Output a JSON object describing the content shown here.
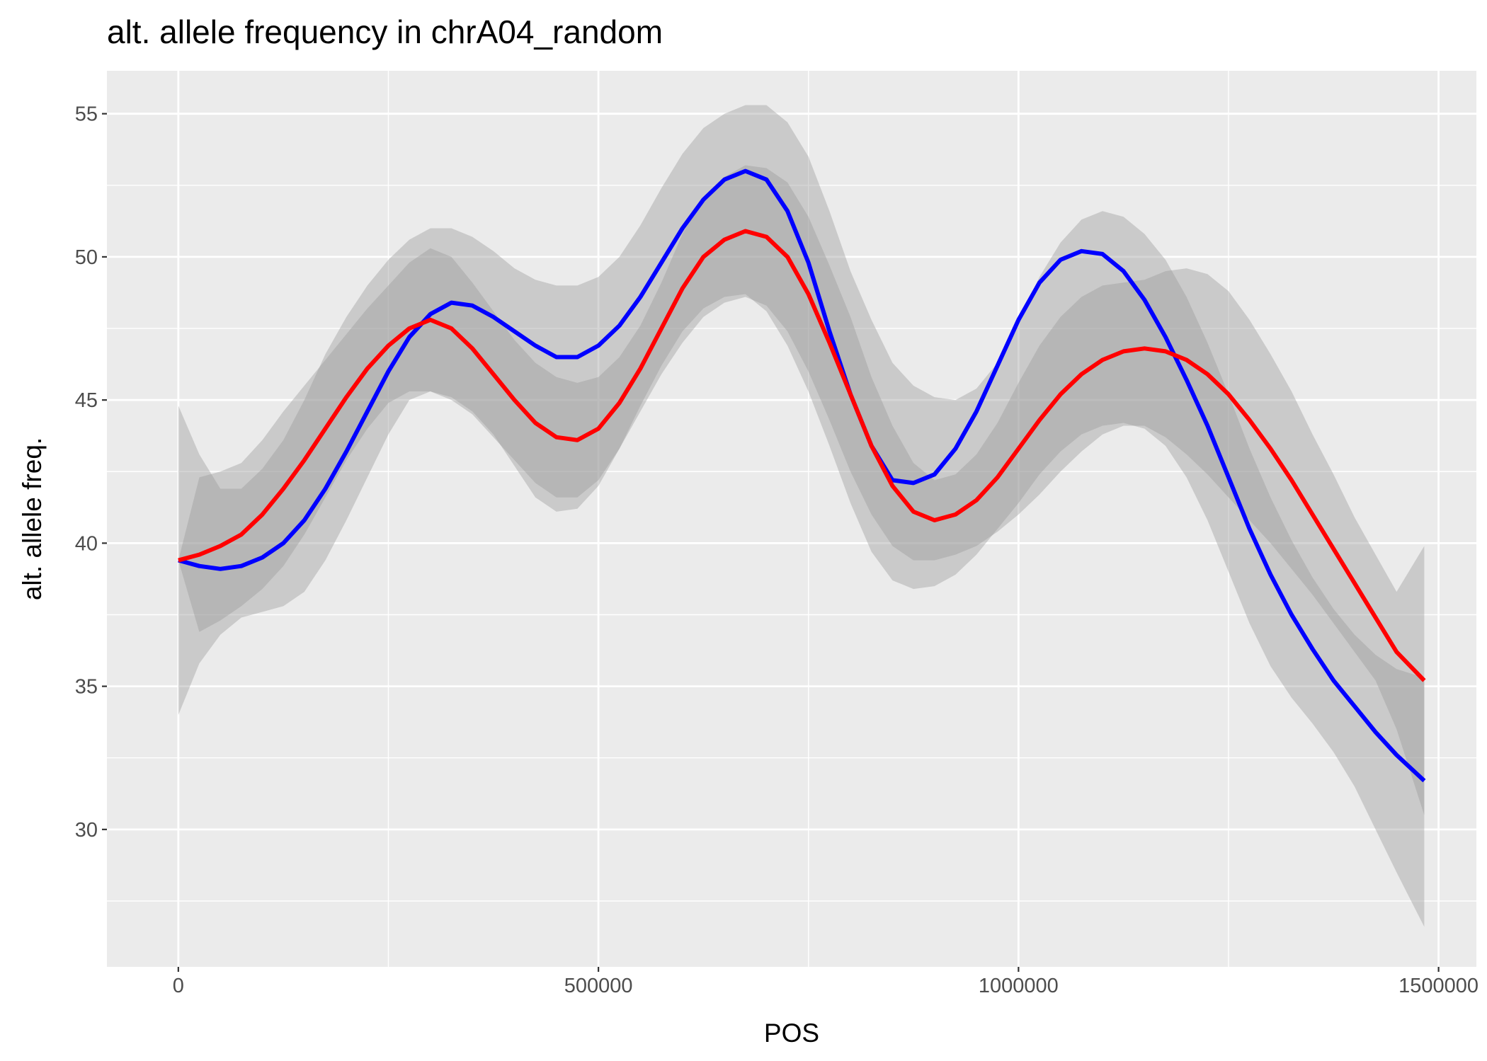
{
  "chart_data": {
    "type": "line",
    "title": "alt. allele frequency in chrA04_random",
    "xlabel": "POS",
    "ylabel": "alt. allele freq.",
    "xlim": [
      -85000,
      1545000
    ],
    "ylim": [
      25.2,
      56.5
    ],
    "x_ticks": [
      0,
      500000,
      1000000,
      1500000
    ],
    "x_tick_labels": [
      "0",
      "500000",
      "1000000",
      "1500000"
    ],
    "y_ticks": [
      30,
      35,
      40,
      45,
      50,
      55
    ],
    "y_tick_labels": [
      "30",
      "35",
      "40",
      "45",
      "50",
      "55"
    ],
    "grid": true,
    "legend": "none",
    "series": [
      {
        "color": "#0000ff",
        "x": [
          0,
          25000,
          50000,
          75000,
          100000,
          125000,
          150000,
          175000,
          200000,
          225000,
          250000,
          275000,
          300000,
          325000,
          350000,
          375000,
          400000,
          425000,
          450000,
          475000,
          500000,
          525000,
          550000,
          575000,
          600000,
          625000,
          650000,
          675000,
          700000,
          725000,
          750000,
          775000,
          800000,
          825000,
          850000,
          875000,
          900000,
          925000,
          950000,
          975000,
          1000000,
          1025000,
          1050000,
          1075000,
          1100000,
          1125000,
          1150000,
          1175000,
          1200000,
          1225000,
          1250000,
          1275000,
          1300000,
          1325000,
          1350000,
          1375000,
          1400000,
          1425000,
          1450000,
          1483000
        ],
        "y": [
          39.4,
          39.2,
          39.1,
          39.2,
          39.5,
          40.0,
          40.8,
          41.9,
          43.2,
          44.6,
          46.0,
          47.2,
          48.0,
          48.4,
          48.3,
          47.9,
          47.4,
          46.9,
          46.5,
          46.5,
          46.9,
          47.6,
          48.6,
          49.8,
          51.0,
          52.0,
          52.7,
          53.0,
          52.7,
          51.6,
          49.8,
          47.4,
          45.2,
          43.4,
          42.2,
          42.1,
          42.4,
          43.3,
          44.6,
          46.2,
          47.8,
          49.1,
          49.9,
          50.2,
          50.1,
          49.5,
          48.5,
          47.2,
          45.7,
          44.1,
          42.3,
          40.5,
          38.9,
          37.5,
          36.3,
          35.2,
          34.3,
          33.4,
          32.6,
          31.7
        ],
        "ci_lower": [
          34.0,
          35.8,
          36.8,
          37.4,
          37.6,
          37.8,
          38.3,
          39.4,
          40.8,
          42.3,
          43.8,
          45.0,
          45.3,
          45.1,
          44.6,
          43.8,
          42.7,
          41.6,
          41.1,
          41.2,
          42.0,
          43.3,
          44.8,
          46.2,
          47.4,
          48.2,
          48.6,
          48.7,
          48.1,
          46.9,
          45.3,
          43.4,
          41.4,
          39.7,
          38.7,
          38.4,
          38.5,
          38.9,
          39.6,
          40.5,
          41.4,
          42.4,
          43.2,
          43.8,
          44.1,
          44.2,
          44.0,
          43.4,
          42.3,
          40.8,
          39.0,
          37.2,
          35.7,
          34.6,
          33.7,
          32.7,
          31.5,
          30.0,
          28.5,
          26.6
        ],
        "ci_upper": [
          44.8,
          43.1,
          41.9,
          41.9,
          42.6,
          43.6,
          45.0,
          46.6,
          47.9,
          49.0,
          49.9,
          50.6,
          51.0,
          51.0,
          50.7,
          50.2,
          49.6,
          49.2,
          49.0,
          49.0,
          49.3,
          50.0,
          51.1,
          52.4,
          53.6,
          54.5,
          55.0,
          55.3,
          55.3,
          54.7,
          53.5,
          51.6,
          49.5,
          47.8,
          46.3,
          45.5,
          45.1,
          45.0,
          45.4,
          46.3,
          47.8,
          49.3,
          50.5,
          51.3,
          51.6,
          51.4,
          50.8,
          49.9,
          48.6,
          47.0,
          45.2,
          43.3,
          41.6,
          40.1,
          38.8,
          37.7,
          36.8,
          36.1,
          35.6,
          35.3
        ]
      },
      {
        "color": "#ff0000",
        "x": [
          0,
          25000,
          50000,
          75000,
          100000,
          125000,
          150000,
          175000,
          200000,
          225000,
          250000,
          275000,
          300000,
          325000,
          350000,
          375000,
          400000,
          425000,
          450000,
          475000,
          500000,
          525000,
          550000,
          575000,
          600000,
          625000,
          650000,
          675000,
          700000,
          725000,
          750000,
          775000,
          800000,
          825000,
          850000,
          875000,
          900000,
          925000,
          950000,
          975000,
          1000000,
          1025000,
          1050000,
          1075000,
          1100000,
          1125000,
          1150000,
          1175000,
          1200000,
          1225000,
          1250000,
          1275000,
          1300000,
          1325000,
          1350000,
          1375000,
          1400000,
          1425000,
          1450000,
          1483000
        ],
        "y": [
          39.4,
          39.6,
          39.9,
          40.3,
          41.0,
          41.9,
          42.9,
          44.0,
          45.1,
          46.1,
          46.9,
          47.5,
          47.8,
          47.5,
          46.8,
          45.9,
          45.0,
          44.2,
          43.7,
          43.6,
          44.0,
          44.9,
          46.1,
          47.5,
          48.9,
          50.0,
          50.6,
          50.9,
          50.7,
          50.0,
          48.7,
          47.0,
          45.2,
          43.4,
          42.0,
          41.1,
          40.8,
          41.0,
          41.5,
          42.3,
          43.3,
          44.3,
          45.2,
          45.9,
          46.4,
          46.7,
          46.8,
          46.7,
          46.4,
          45.9,
          45.2,
          44.3,
          43.3,
          42.2,
          41.0,
          39.8,
          38.6,
          37.4,
          36.2,
          35.2
        ],
        "ci_lower": [
          39.4,
          36.9,
          37.3,
          37.8,
          38.4,
          39.2,
          40.3,
          41.6,
          42.9,
          44.0,
          44.9,
          45.3,
          45.3,
          45.0,
          44.5,
          43.7,
          42.9,
          42.1,
          41.6,
          41.6,
          42.2,
          43.3,
          44.6,
          45.9,
          47.0,
          47.9,
          48.4,
          48.6,
          48.3,
          47.4,
          46.0,
          44.3,
          42.5,
          41.0,
          39.9,
          39.4,
          39.4,
          39.6,
          39.9,
          40.4,
          41.0,
          41.7,
          42.5,
          43.2,
          43.8,
          44.1,
          44.1,
          43.7,
          43.1,
          42.4,
          41.6,
          40.8,
          40.0,
          39.1,
          38.2,
          37.2,
          36.2,
          35.2,
          33.5,
          30.5
        ],
        "ci_upper": [
          39.4,
          42.3,
          42.5,
          42.8,
          43.6,
          44.6,
          45.5,
          46.4,
          47.3,
          48.2,
          49.0,
          49.8,
          50.3,
          50.0,
          49.1,
          48.1,
          47.1,
          46.3,
          45.8,
          45.6,
          45.8,
          46.5,
          47.6,
          49.1,
          50.8,
          52.1,
          52.8,
          53.2,
          53.1,
          52.6,
          51.4,
          49.7,
          47.9,
          45.8,
          44.1,
          42.8,
          42.2,
          42.4,
          43.1,
          44.2,
          45.6,
          46.9,
          47.9,
          48.6,
          49.0,
          49.1,
          49.2,
          49.5,
          49.6,
          49.4,
          48.8,
          47.8,
          46.6,
          45.3,
          43.8,
          42.4,
          40.9,
          39.6,
          38.3,
          39.9
        ]
      }
    ]
  }
}
